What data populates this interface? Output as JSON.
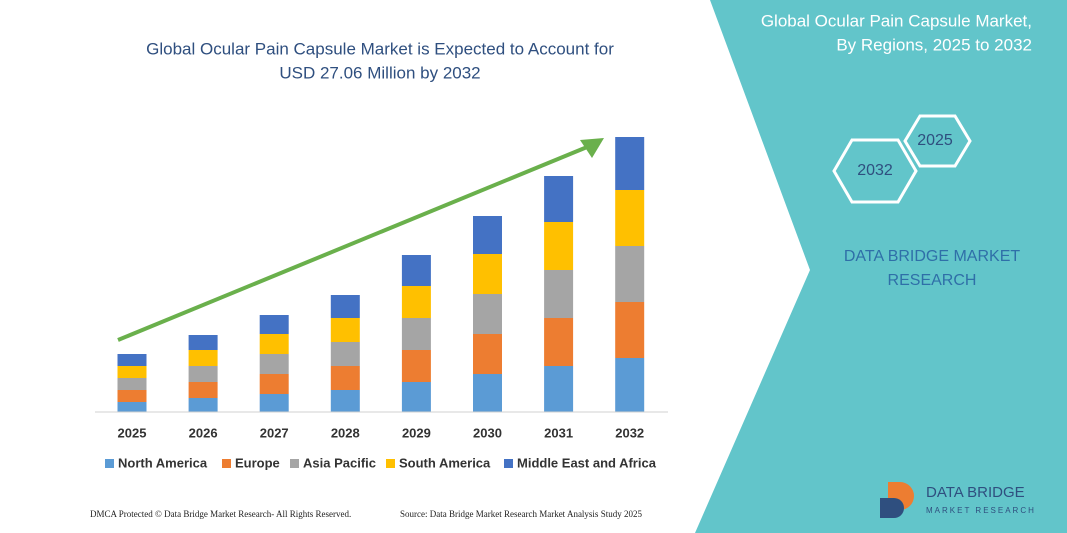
{
  "chart_data": {
    "type": "bar",
    "stacked": true,
    "title": [
      "Global Ocular Pain Capsule Market is Expected to Account for",
      "USD 27.06 Million by 2032"
    ],
    "categories": [
      "2025",
      "2026",
      "2027",
      "2028",
      "2029",
      "2030",
      "2031",
      "2032"
    ],
    "ylim": [
      0,
      280
    ],
    "series": [
      {
        "name": "North America",
        "color": "#5b9bd5",
        "values": [
          10,
          14,
          18,
          22,
          30,
          38,
          46,
          54
        ]
      },
      {
        "name": "Europe",
        "color": "#ed7d31",
        "values": [
          12,
          16,
          20,
          24,
          32,
          40,
          48,
          56
        ]
      },
      {
        "name": "Asia Pacific",
        "color": "#a5a5a5",
        "values": [
          12,
          16,
          20,
          24,
          32,
          40,
          48,
          56
        ]
      },
      {
        "name": "South America",
        "color": "#ffc000",
        "values": [
          12,
          16,
          20,
          24,
          32,
          40,
          48,
          56
        ]
      },
      {
        "name": "Middle East and Africa",
        "color": "#4472c4",
        "values": [
          12,
          15,
          19,
          23,
          31,
          38,
          46,
          53
        ]
      }
    ]
  },
  "panel": {
    "title": [
      "Global Ocular Pain Capsule Market,",
      "By Regions, 2025 to 2032"
    ],
    "badges": [
      "2025",
      "2032"
    ],
    "brand": [
      "DATA BRIDGE MARKET",
      "RESEARCH"
    ]
  },
  "logo": {
    "name": "DATA BRIDGE",
    "tagline": "MARKET RESEARCH"
  },
  "footer": {
    "left": "DMCA Protected © Data Bridge Market Research-  All Rights Reserved.",
    "right": "Source: Data Bridge Market Research  Market Analysis Study 2025"
  }
}
